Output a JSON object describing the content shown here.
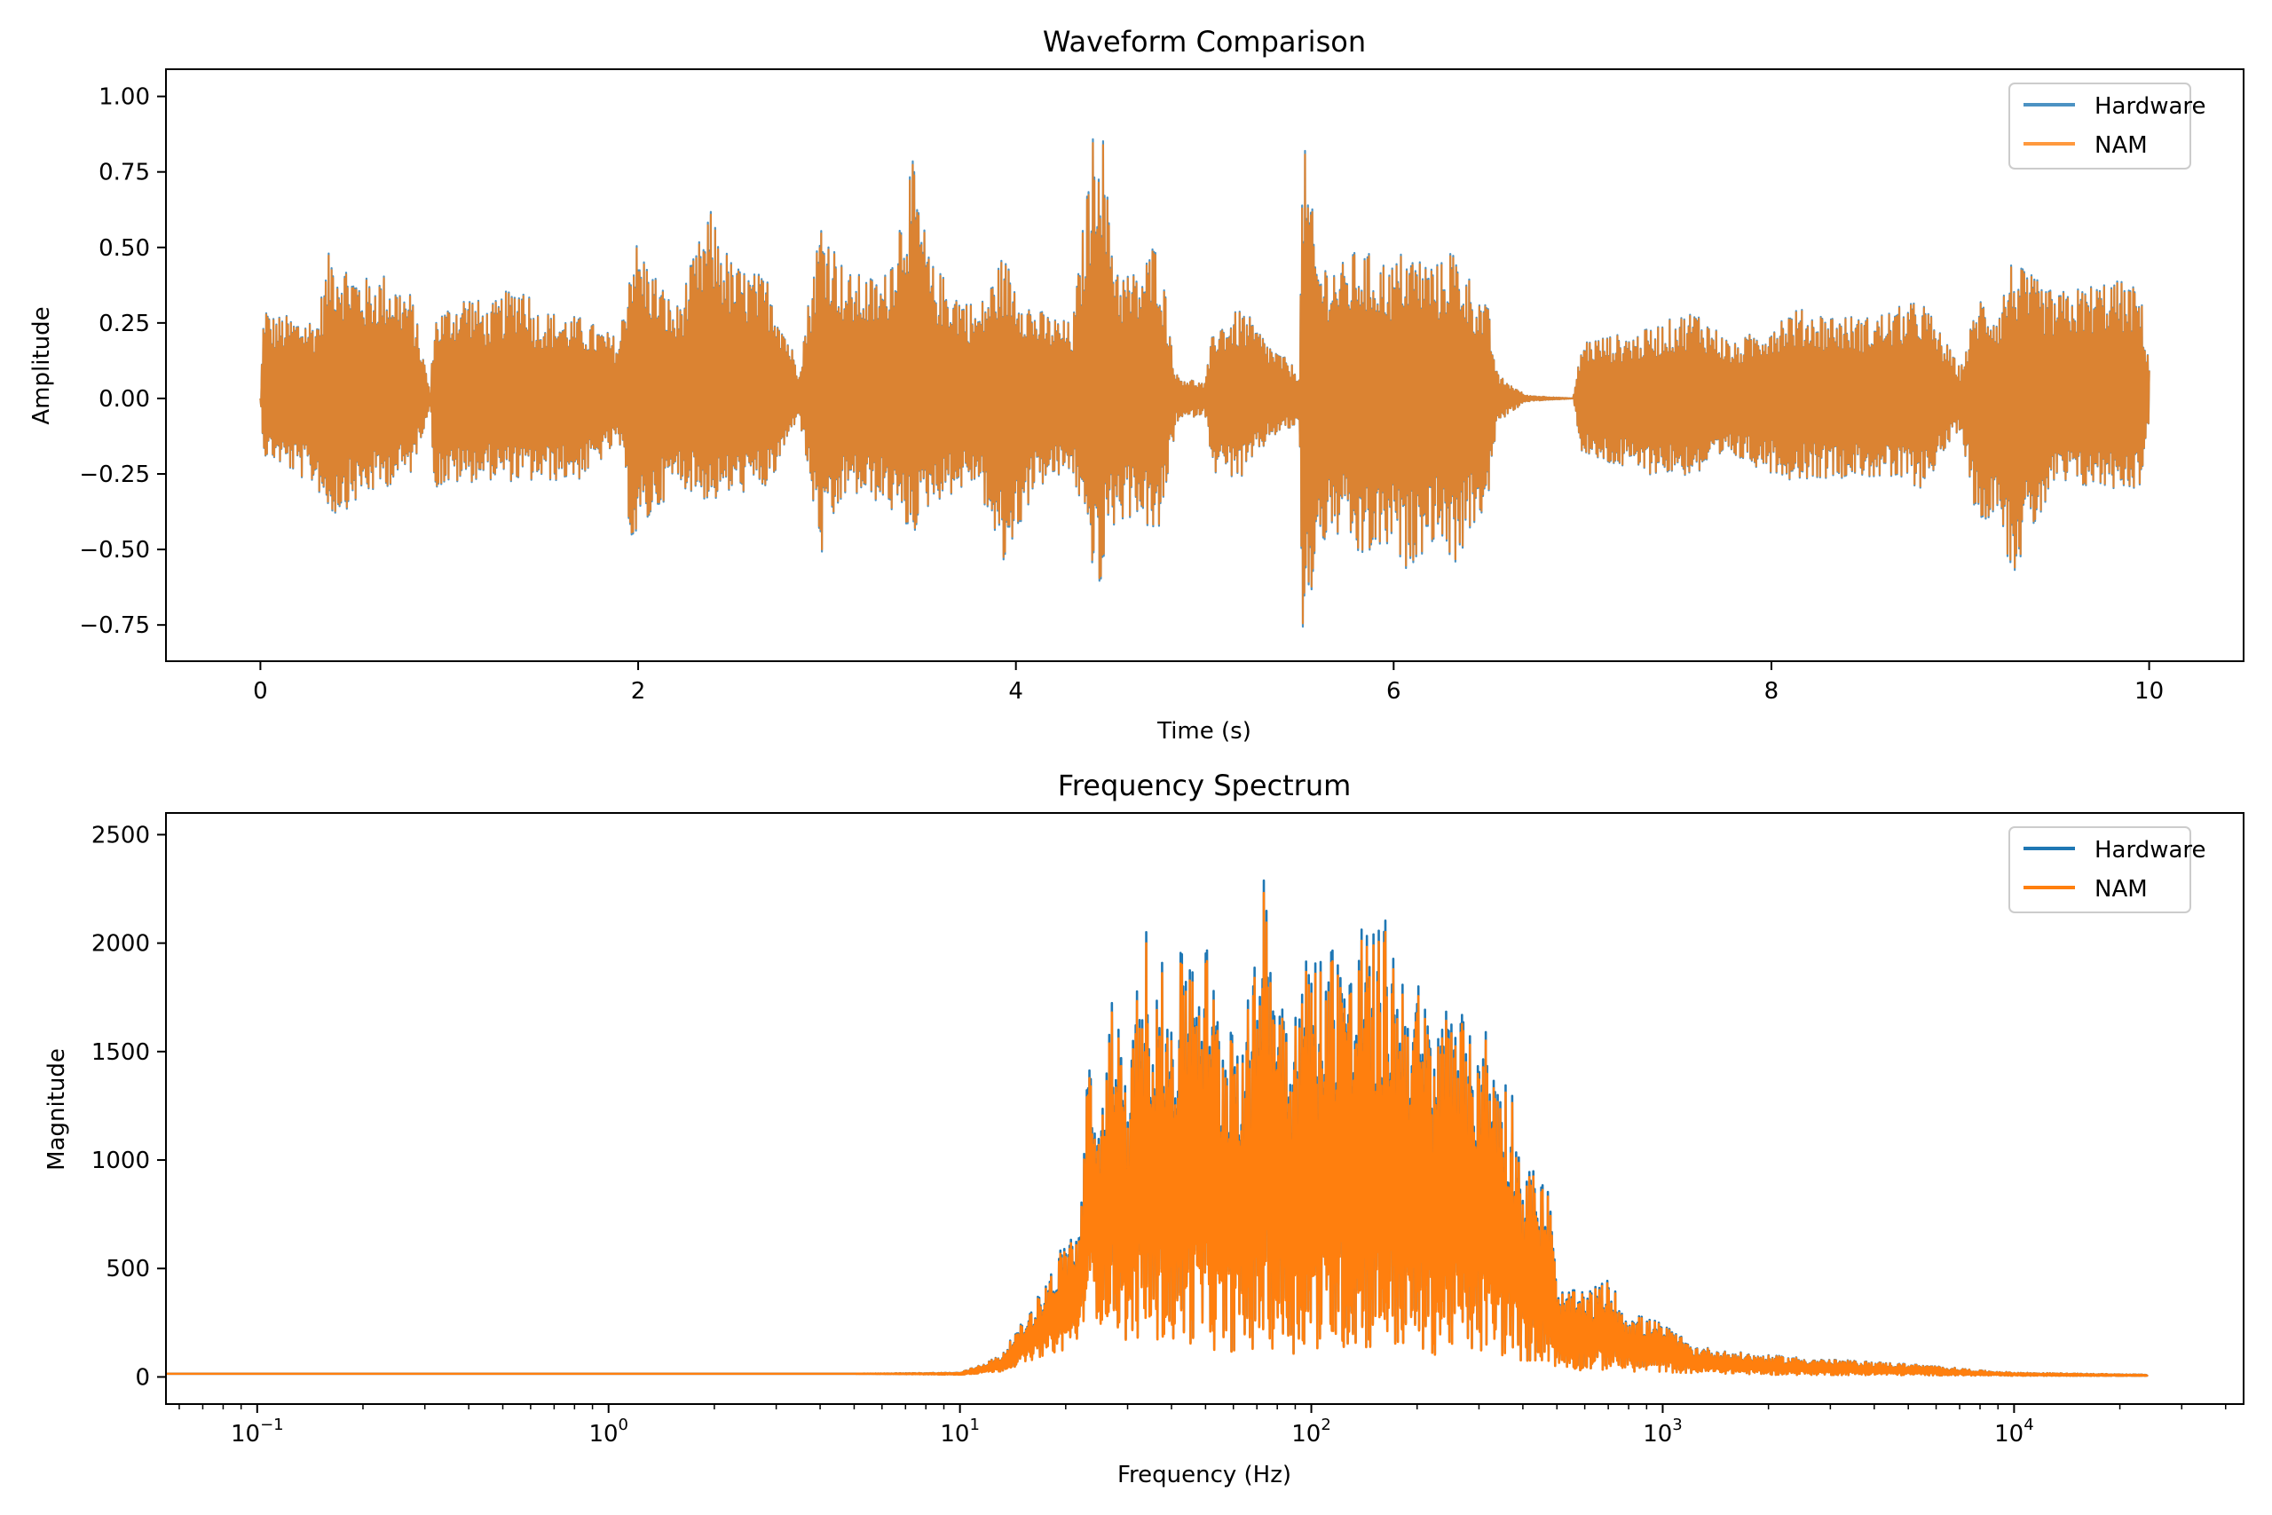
{
  "chart_data": [
    {
      "type": "line",
      "title": "Waveform Comparison",
      "xlabel": "Time (s)",
      "ylabel": "Amplitude",
      "xlim": [
        -0.5,
        10.5
      ],
      "ylim": [
        -0.87,
        1.09
      ],
      "xticks": [
        0,
        2,
        4,
        6,
        8,
        10
      ],
      "xtick_labels": [
        "0",
        "2",
        "4",
        "6",
        "8",
        "10"
      ],
      "yticks": [
        -0.75,
        -0.5,
        -0.25,
        0.0,
        0.25,
        0.5,
        0.75,
        1.0
      ],
      "ytick_labels": [
        "−0.75",
        "−0.50",
        "−0.25",
        "0.00",
        "0.25",
        "0.50",
        "0.75",
        "1.00"
      ],
      "grid": false,
      "legend_position": "top-right",
      "envelope": {
        "x": [
          0.0,
          0.02,
          0.05,
          0.3,
          0.37,
          0.55,
          0.65,
          0.8,
          0.9,
          0.92,
          1.1,
          1.2,
          1.4,
          1.45,
          1.7,
          1.9,
          1.97,
          2.2,
          2.38,
          2.5,
          2.7,
          2.85,
          2.97,
          3.1,
          3.3,
          3.45,
          3.55,
          3.8,
          3.93,
          4.1,
          4.3,
          4.42,
          4.45,
          4.48,
          4.55,
          4.65,
          4.75,
          4.85,
          5.0,
          5.05,
          5.2,
          5.35,
          5.5,
          5.52,
          5.6,
          5.75,
          5.8,
          6.0,
          6.05,
          6.25,
          6.3,
          6.5,
          6.55,
          6.7,
          6.95,
          7.0,
          7.3,
          7.6,
          7.8,
          8.1,
          8.5,
          8.8,
          9.0,
          9.1,
          9.2,
          9.27,
          9.5,
          9.8,
          9.95,
          10.0
        ],
        "upper": [
          0.0,
          0.35,
          0.28,
          0.27,
          0.51,
          0.4,
          0.42,
          0.35,
          0.02,
          0.28,
          0.36,
          0.3,
          0.41,
          0.3,
          0.27,
          0.2,
          0.55,
          0.3,
          0.63,
          0.45,
          0.4,
          0.1,
          0.63,
          0.42,
          0.4,
          0.8,
          0.45,
          0.3,
          0.48,
          0.3,
          0.25,
          0.95,
          1.0,
          0.7,
          0.43,
          0.42,
          0.55,
          0.08,
          0.05,
          0.25,
          0.3,
          0.18,
          0.09,
          0.88,
          0.47,
          0.45,
          0.5,
          0.45,
          0.5,
          0.45,
          0.52,
          0.3,
          0.08,
          0.01,
          0.0,
          0.2,
          0.22,
          0.3,
          0.18,
          0.3,
          0.27,
          0.33,
          0.1,
          0.35,
          0.3,
          0.46,
          0.35,
          0.4,
          0.37,
          0.13
        ],
        "lower": [
          0.0,
          -0.2,
          -0.2,
          -0.3,
          -0.4,
          -0.33,
          -0.3,
          -0.25,
          -0.02,
          -0.3,
          -0.28,
          -0.27,
          -0.28,
          -0.28,
          -0.27,
          -0.15,
          -0.5,
          -0.28,
          -0.35,
          -0.32,
          -0.3,
          -0.05,
          -0.54,
          -0.32,
          -0.35,
          -0.46,
          -0.35,
          -0.28,
          -0.58,
          -0.3,
          -0.25,
          -0.6,
          -0.7,
          -0.45,
          -0.42,
          -0.38,
          -0.5,
          -0.08,
          -0.05,
          -0.25,
          -0.27,
          -0.13,
          -0.09,
          -0.87,
          -0.5,
          -0.45,
          -0.55,
          -0.5,
          -0.58,
          -0.45,
          -0.58,
          -0.35,
          -0.08,
          -0.01,
          0.0,
          -0.2,
          -0.25,
          -0.26,
          -0.2,
          -0.27,
          -0.26,
          -0.3,
          -0.1,
          -0.45,
          -0.35,
          -0.6,
          -0.3,
          -0.3,
          -0.3,
          -0.08
        ]
      },
      "series": [
        {
          "name": "Hardware",
          "color": "#1f77b4",
          "opacity": 0.8
        },
        {
          "name": "NAM",
          "color": "#ff7f0e",
          "opacity": 0.8
        }
      ]
    },
    {
      "type": "line",
      "title": "Frequency Spectrum",
      "xlabel": "Frequency (Hz)",
      "ylabel": "Magnitude",
      "xscale": "log",
      "xlim": [
        0.055,
        45000
      ],
      "ylim": [
        -125,
        2600
      ],
      "xticks": [
        0.1,
        1,
        10,
        100,
        1000,
        10000
      ],
      "xtick_labels": [
        {
          "base": "10",
          "exp": "−1"
        },
        {
          "base": "10",
          "exp": "0"
        },
        {
          "base": "10",
          "exp": "1"
        },
        {
          "base": "10",
          "exp": "2"
        },
        {
          "base": "10",
          "exp": "3"
        },
        {
          "base": "10",
          "exp": "4"
        }
      ],
      "yticks": [
        0,
        500,
        1000,
        1500,
        2000,
        2500
      ],
      "ytick_labels": [
        "0",
        "500",
        "1000",
        "1500",
        "2000",
        "2500"
      ],
      "grid": false,
      "legend_position": "top-right",
      "envelope": {
        "x": [
          0.055,
          1,
          5,
          10,
          13,
          15,
          17,
          20,
          22,
          23,
          25,
          27,
          30,
          33,
          40,
          45,
          50,
          55,
          60,
          65,
          70,
          72,
          80,
          90,
          100,
          110,
          120,
          130,
          140,
          150,
          160,
          180,
          200,
          230,
          250,
          280,
          300,
          330,
          370,
          400,
          450,
          480,
          500,
          600,
          700,
          800,
          1000,
          1200,
          1500,
          2000,
          3000,
          5000,
          8000,
          10000,
          15000,
          24000
        ],
        "upper": [
          15,
          15,
          15,
          20,
          100,
          250,
          400,
          650,
          720,
          1490,
          1200,
          1850,
          1300,
          2120,
          1800,
          2120,
          2050,
          1700,
          1800,
          1700,
          1950,
          2480,
          1950,
          1800,
          2040,
          1950,
          2200,
          1900,
          2150,
          2050,
          2150,
          1950,
          1850,
          1600,
          1950,
          1550,
          1750,
          1500,
          1380,
          1000,
          950,
          850,
          400,
          400,
          450,
          300,
          250,
          150,
          120,
          100,
          80,
          60,
          30,
          20,
          15,
          10
        ],
        "lower": [
          15,
          15,
          15,
          10,
          20,
          50,
          80,
          100,
          150,
          300,
          200,
          150,
          100,
          80,
          60,
          50,
          40,
          30,
          30,
          20,
          20,
          20,
          20,
          20,
          20,
          20,
          20,
          20,
          20,
          20,
          20,
          20,
          20,
          20,
          20,
          20,
          20,
          20,
          20,
          20,
          20,
          20,
          20,
          10,
          10,
          10,
          10,
          10,
          10,
          5,
          5,
          5,
          5,
          5,
          5,
          5
        ]
      },
      "series": [
        {
          "name": "Hardware",
          "color": "#1f77b4",
          "opacity": 1.0
        },
        {
          "name": "NAM",
          "color": "#ff7f0e",
          "opacity": 1.0
        }
      ]
    }
  ]
}
